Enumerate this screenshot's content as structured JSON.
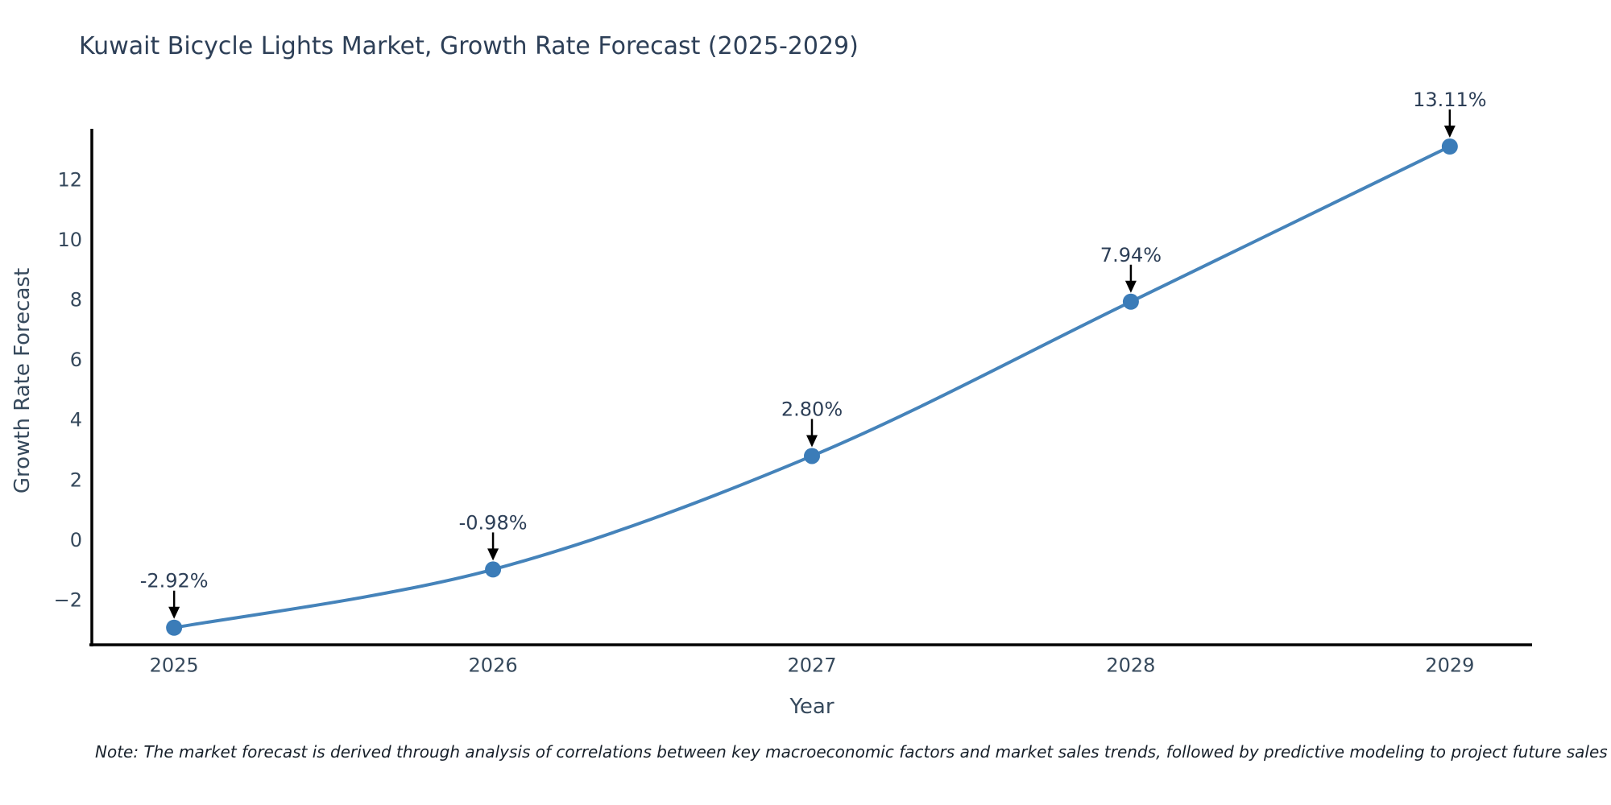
{
  "title": "Kuwait Bicycle Lights Market, Growth Rate Forecast (2025-2029)",
  "note": "Note: The market forecast is derived through analysis of correlations between key macroeconomic factors and market sales trends, followed by predictive modeling to project future sales",
  "chart_data": {
    "type": "line",
    "title": "Kuwait Bicycle Lights Market, Growth Rate Forecast (2025-2029)",
    "xlabel": "Year",
    "ylabel": "Growth Rate Forecast",
    "x": [
      2025,
      2026,
      2027,
      2028,
      2029
    ],
    "values": [
      -2.92,
      -0.98,
      2.8,
      7.94,
      13.11
    ],
    "point_labels": [
      "-2.92%",
      "-0.98%",
      "2.80%",
      "7.94%",
      "13.11%"
    ],
    "xtick_labels": [
      "2025",
      "2026",
      "2027",
      "2028",
      "2029"
    ],
    "ytick_values": [
      -2,
      0,
      2,
      4,
      6,
      8,
      10,
      12
    ],
    "ytick_labels": [
      "−2",
      "0",
      "2",
      "4",
      "6",
      "8",
      "10",
      "12"
    ],
    "xlim": [
      2024.742,
      2029.258
    ],
    "ylim": [
      -3.49,
      13.7
    ],
    "grid": false,
    "legend": "none",
    "smooth_spline": true,
    "line_color": "#4583ba",
    "marker_color": "#3b7cb8",
    "axis_color": "#000000",
    "arrow_color": "#000000",
    "text_color": "#36495c",
    "line_width": 4,
    "marker_radius": 10
  }
}
